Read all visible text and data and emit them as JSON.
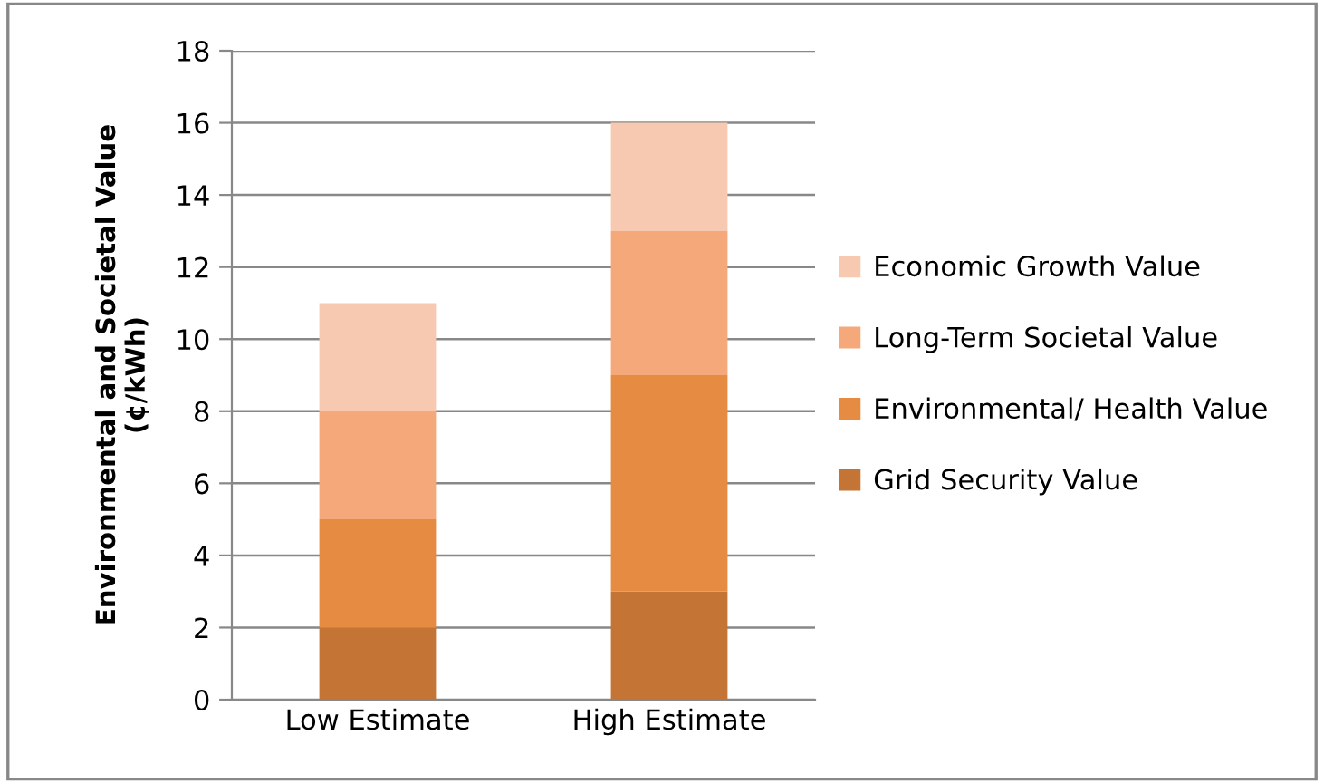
{
  "chart_data": {
    "type": "bar",
    "stacked": true,
    "ylabel": "Environmental and Societal Value\n(¢/kWh)",
    "categories": [
      "Low Estimate",
      "High Estimate"
    ],
    "series": [
      {
        "name": "Grid Security Value",
        "color": "#c47535",
        "values": [
          2,
          3
        ]
      },
      {
        "name": "Environmental/ Health Value",
        "color": "#e68c42",
        "values": [
          3,
          6
        ]
      },
      {
        "name": "Long-Term Societal Value",
        "color": "#f5a97a",
        "values": [
          3,
          4
        ]
      },
      {
        "name": "Economic Growth Value",
        "color": "#f8c9b1",
        "values": [
          3,
          3
        ]
      }
    ],
    "ylim": [
      0,
      18
    ],
    "yticks": [
      0,
      2,
      4,
      6,
      8,
      10,
      12,
      14,
      16,
      18
    ],
    "grid": "y",
    "legend": "right"
  }
}
